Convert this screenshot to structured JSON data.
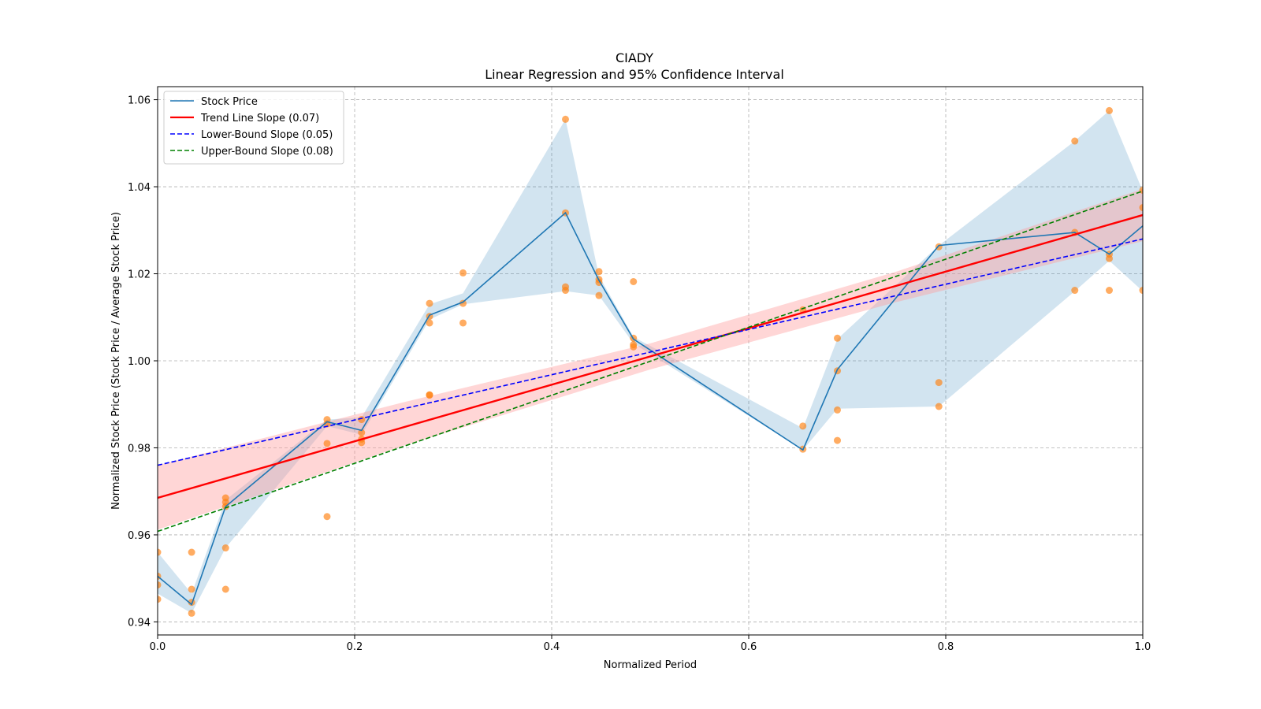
{
  "chart_data": {
    "type": "line",
    "title": "CIADY",
    "subtitle": "Linear Regression and 95% Confidence Interval",
    "xlabel": "Normalized Period",
    "ylabel": "Normalized Stock Price (Stock Price / Average Stock Price)",
    "xlim": [
      0.0,
      1.0
    ],
    "ylim": [
      0.937,
      1.063
    ],
    "xticks": [
      0.0,
      0.2,
      0.4,
      0.6,
      0.8,
      1.0
    ],
    "xtick_labels": [
      "0.0",
      "0.2",
      "0.4",
      "0.6",
      "0.8",
      "1.0"
    ],
    "yticks": [
      0.94,
      0.96,
      0.98,
      1.0,
      1.02,
      1.04,
      1.06
    ],
    "ytick_labels": [
      "0.94",
      "0.96",
      "0.98",
      "1.00",
      "1.02",
      "1.04",
      "1.06"
    ],
    "grid": true,
    "legend_position": "top-left",
    "colors": {
      "stock": "#1f77b4",
      "stock_band": "#1f77b4",
      "scatter": "#ff7f0e",
      "trend": "#ff0000",
      "trend_band": "#ff9999",
      "lower": "#0000ff",
      "upper": "#008000"
    },
    "legend": [
      {
        "label": "Stock Price",
        "color": "#1f77b4",
        "style": "solid"
      },
      {
        "label": "Trend Line Slope (0.07)",
        "color": "#ff0000",
        "style": "solid"
      },
      {
        "label": "Lower-Bound Slope (0.05)",
        "color": "#0000ff",
        "style": "dashed"
      },
      {
        "label": "Upper-Bound Slope (0.08)",
        "color": "#008000",
        "style": "dashed"
      }
    ],
    "stock_line": {
      "x": [
        0.0,
        0.0345,
        0.069,
        0.172,
        0.207,
        0.276,
        0.31,
        0.414,
        0.448,
        0.483,
        0.655,
        0.69,
        0.793,
        0.931,
        0.966,
        1.0
      ],
      "y": [
        0.9505,
        0.944,
        0.9665,
        0.986,
        0.984,
        1.0105,
        1.0135,
        1.034,
        1.0185,
        1.005,
        0.9795,
        0.998,
        1.0265,
        1.0295,
        1.0245,
        1.031
      ]
    },
    "stock_band": {
      "x": [
        0.0,
        0.0345,
        0.069,
        0.172,
        0.207,
        0.276,
        0.31,
        0.414,
        0.448,
        0.483,
        0.655,
        0.69,
        0.793,
        0.931,
        0.966,
        1.0
      ],
      "lower": [
        0.9465,
        0.942,
        0.957,
        0.985,
        0.983,
        1.0095,
        1.013,
        1.016,
        1.015,
        1.004,
        0.9795,
        0.989,
        0.9895,
        1.016,
        1.023,
        1.016
      ],
      "upper": [
        0.956,
        0.9465,
        0.968,
        0.9865,
        0.987,
        1.013,
        1.0155,
        1.0555,
        1.0195,
        1.0055,
        0.9845,
        1.005,
        1.0265,
        1.0505,
        1.0575,
        1.039
      ]
    },
    "scatter": {
      "x": [
        0.0,
        0.0,
        0.0,
        0.0,
        0.0345,
        0.0345,
        0.0345,
        0.0345,
        0.069,
        0.069,
        0.069,
        0.069,
        0.069,
        0.172,
        0.172,
        0.172,
        0.172,
        0.207,
        0.207,
        0.207,
        0.207,
        0.276,
        0.276,
        0.276,
        0.276,
        0.276,
        0.31,
        0.31,
        0.31,
        0.414,
        0.414,
        0.414,
        0.414,
        0.448,
        0.448,
        0.448,
        0.448,
        0.483,
        0.483,
        0.483,
        0.483,
        0.655,
        0.655,
        0.655,
        0.69,
        0.69,
        0.69,
        0.69,
        0.793,
        0.793,
        0.793,
        0.931,
        0.931,
        0.931,
        0.966,
        0.966,
        0.966,
        0.966,
        1.0,
        1.0,
        1.0
      ],
      "y": [
        0.956,
        0.9505,
        0.9485,
        0.9452,
        0.956,
        0.9475,
        0.9445,
        0.942,
        0.9685,
        0.9675,
        0.9665,
        0.957,
        0.9475,
        0.9865,
        0.9855,
        0.981,
        0.9642,
        0.9865,
        0.9835,
        0.982,
        0.9812,
        1.0132,
        1.0102,
        1.0087,
        0.9922,
        0.9921,
        1.0202,
        1.0132,
        1.0087,
        1.0555,
        1.034,
        1.017,
        1.0162,
        1.0205,
        1.0187,
        1.018,
        1.015,
        1.0182,
        1.0052,
        1.0037,
        1.0032,
        0.985,
        0.9797,
        1.0117,
        1.0052,
        0.9977,
        0.9887,
        0.9817,
        1.0262,
        0.995,
        0.9895,
        1.0505,
        1.0295,
        1.0162,
        1.0575,
        1.0245,
        1.0235,
        1.0162,
        1.0392,
        1.0352,
        1.0162
      ]
    },
    "trend_line": {
      "x": [
        0.0,
        1.0
      ],
      "y": [
        0.9685,
        1.0335
      ]
    },
    "trend_band": {
      "x": [
        0.0,
        0.25,
        0.5,
        0.75,
        1.0
      ],
      "lower": [
        0.9612,
        0.9805,
        0.998,
        1.0135,
        1.0275
      ],
      "upper": [
        0.976,
        0.9905,
        1.004,
        1.0205,
        1.0395
      ]
    },
    "lower_line": {
      "x": [
        0.0,
        1.0
      ],
      "y": [
        0.976,
        1.028
      ]
    },
    "upper_line": {
      "x": [
        0.0,
        1.0
      ],
      "y": [
        0.9608,
        1.039
      ]
    }
  }
}
